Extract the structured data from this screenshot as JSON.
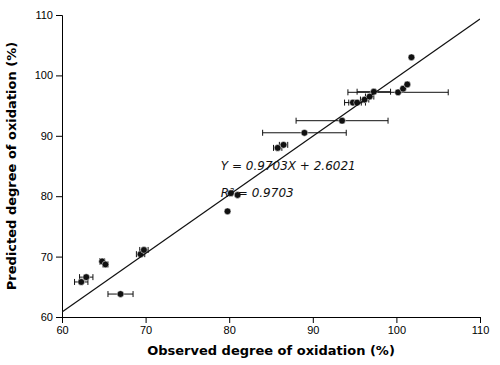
{
  "chart_data": {
    "type": "scatter",
    "xlabel": "Observed degree of oxidation (%)",
    "ylabel": "Predicted degree of oxidation (%)",
    "xlim": [
      60,
      110
    ],
    "ylim": [
      60,
      110
    ],
    "xticks": [
      60,
      70,
      80,
      90,
      100,
      110
    ],
    "yticks": [
      60,
      70,
      80,
      90,
      100,
      110
    ],
    "series": [
      {
        "type": "scatter",
        "marker": "circle",
        "color": "#111111",
        "x": [
          62.3,
          62.9,
          64.8,
          65.2,
          67.0,
          69.4,
          69.8,
          79.8,
          80.2,
          81.0,
          85.8,
          86.5,
          89.0,
          93.5,
          94.8,
          95.3,
          96.2,
          96.8,
          97.3,
          100.2,
          100.8,
          101.3,
          101.8
        ],
        "values": [
          65.8,
          66.6,
          69.2,
          68.7,
          63.8,
          70.4,
          71.1,
          77.5,
          80.5,
          80.2,
          88.0,
          88.5,
          90.5,
          92.5,
          95.5,
          95.5,
          96.0,
          96.5,
          97.3,
          97.2,
          97.8,
          98.5,
          103.0
        ],
        "xerr": [
          0.8,
          0.8,
          0.3,
          0.3,
          1.5,
          0.5,
          0.5,
          0,
          0,
          0,
          0.5,
          0.5,
          5.0,
          5.5,
          1.0,
          1.0,
          0.5,
          0.5,
          2.0,
          6.0,
          0,
          0,
          0
        ]
      },
      {
        "type": "line",
        "line_style": "solid",
        "color": "#111111",
        "x": [
          60,
          110
        ],
        "values": [
          60.8201,
          109.3351
        ]
      }
    ],
    "annotations": [
      {
        "text": "Y = 0.9703X + 2.6021",
        "x": 79,
        "y": 84
      },
      {
        "text": "R² = 0.9703",
        "x": 79,
        "y": 79.5
      }
    ]
  }
}
